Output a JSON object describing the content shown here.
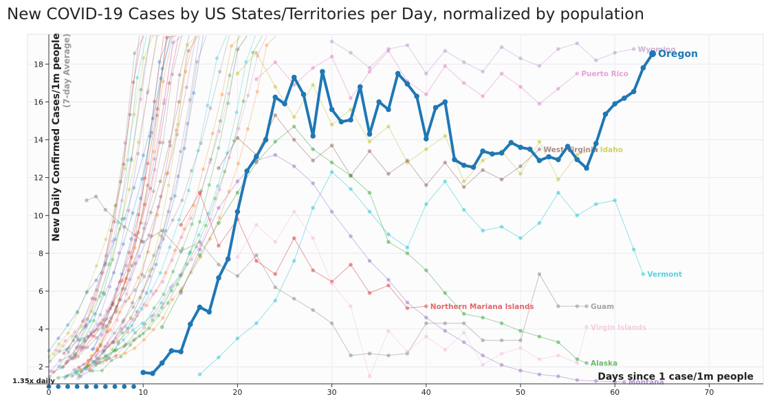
{
  "page": {
    "title": "New COVID-19 Cases by US States/Territories per Day, normalized by population"
  },
  "chart_data": {
    "type": "line",
    "title": "New COVID-19 Cases by US States/Territories per Day, normalized by population",
    "xlabel": "Days since 1 case/1m people",
    "ylabel": "New Daily Confirmed Cases/1m people",
    "ylabel_sub": "(7-day Average)",
    "xlim": [
      0,
      75
    ],
    "ylim": [
      1.1,
      19.5
    ],
    "x_ticks": [
      0,
      10,
      20,
      30,
      40,
      50,
      60,
      70
    ],
    "y_ticks": [
      2,
      4,
      6,
      8,
      10,
      12,
      14,
      16,
      18
    ],
    "grid": true,
    "trend_label": "1.35x daily",
    "highlight": {
      "name": "Oregon",
      "color": "#1f77b4",
      "x": [
        10,
        11,
        12,
        13,
        14,
        15,
        16,
        17,
        18,
        19,
        20,
        21,
        22,
        23,
        24,
        25,
        26,
        27,
        28,
        29,
        30,
        31,
        32,
        33,
        34,
        35,
        36,
        37,
        38,
        39,
        40,
        41,
        42,
        43,
        44,
        45,
        46,
        47,
        48,
        49,
        50,
        51,
        52,
        53,
        54,
        55,
        56,
        57,
        58,
        59,
        60,
        61,
        62,
        63,
        64
      ],
      "y": [
        1.7,
        1.65,
        2.2,
        2.85,
        2.8,
        4.25,
        5.15,
        4.9,
        6.7,
        7.7,
        10.2,
        12.35,
        13.1,
        14.0,
        16.25,
        15.9,
        17.3,
        16.4,
        14.2,
        17.6,
        15.6,
        14.95,
        15.05,
        16.8,
        14.3,
        16.0,
        15.6,
        17.5,
        16.95,
        16.3,
        14.05,
        15.7,
        16.0,
        12.95,
        12.65,
        12.55,
        13.4,
        13.25,
        13.3,
        13.85,
        13.6,
        13.5,
        12.9,
        13.1,
        12.95,
        13.65,
        12.95,
        12.5,
        13.8,
        15.35,
        15.9,
        16.2,
        16.55,
        17.8,
        18.55
      ]
    },
    "series": [
      {
        "name": "Wyoming",
        "color": "#b98ec4",
        "x": [
          30,
          32,
          34,
          36,
          38,
          40,
          42,
          44,
          46,
          48,
          50,
          52,
          54,
          56,
          58,
          60,
          62
        ],
        "y": [
          19.2,
          18.6,
          17.8,
          18.8,
          19.0,
          17.5,
          18.7,
          18.1,
          17.6,
          18.9,
          18.3,
          17.9,
          18.8,
          19.1,
          18.2,
          18.6,
          18.8
        ]
      },
      {
        "name": "Puerto Rico",
        "color": "#e377c2",
        "x": [
          22,
          24,
          26,
          28,
          30,
          32,
          34,
          36,
          38,
          40,
          42,
          44,
          46,
          48,
          50,
          52,
          54,
          56
        ],
        "y": [
          17.2,
          18.1,
          16.9,
          17.8,
          18.4,
          16.2,
          17.6,
          18.7,
          17.1,
          16.4,
          17.9,
          17.0,
          16.3,
          17.5,
          16.8,
          15.9,
          16.7,
          17.5
        ]
      },
      {
        "name": "Idaho",
        "color": "#bcbd22",
        "x": [
          20,
          22,
          24,
          26,
          28,
          30,
          32,
          34,
          36,
          38,
          40,
          42,
          44,
          46,
          48,
          50,
          52,
          54,
          56,
          58
        ],
        "y": [
          17.5,
          18.6,
          16.8,
          15.2,
          16.9,
          14.8,
          15.6,
          13.9,
          14.7,
          12.8,
          13.5,
          14.2,
          11.8,
          12.9,
          13.4,
          12.2,
          13.9,
          11.9,
          13.2,
          13.5
        ]
      },
      {
        "name": "West Virginia",
        "color": "#8c564b",
        "x": [
          18,
          20,
          22,
          24,
          26,
          28,
          30,
          32,
          34,
          36,
          38,
          40,
          42,
          44,
          46,
          48,
          50,
          52
        ],
        "y": [
          12.5,
          14.1,
          13.2,
          15.3,
          14.0,
          12.9,
          13.7,
          12.1,
          13.4,
          12.2,
          12.9,
          11.6,
          12.8,
          11.5,
          12.4,
          11.9,
          12.6,
          13.5
        ]
      },
      {
        "name": "Vermont",
        "color": "#17becf",
        "x": [
          16,
          18,
          20,
          22,
          24,
          26,
          28,
          30,
          32,
          34,
          36,
          38,
          40,
          42,
          44,
          46,
          48,
          50,
          52,
          54,
          56,
          58,
          60,
          62,
          63
        ],
        "y": [
          1.6,
          2.5,
          3.5,
          4.3,
          5.5,
          7.6,
          10.4,
          12.3,
          11.4,
          10.2,
          9.0,
          8.3,
          10.6,
          11.8,
          10.3,
          9.2,
          9.4,
          8.8,
          9.6,
          11.2,
          10.0,
          10.6,
          10.8,
          8.2,
          6.9
        ]
      },
      {
        "name": "Northern Mariana Islands",
        "color": "#d62728",
        "x": [
          14,
          16,
          18,
          20,
          22,
          24,
          26,
          28,
          30,
          32,
          34,
          36,
          38,
          40
        ],
        "y": [
          9.5,
          11.2,
          8.4,
          9.8,
          7.6,
          6.9,
          8.8,
          7.1,
          6.5,
          7.4,
          5.9,
          6.3,
          5.1,
          5.2
        ]
      },
      {
        "name": "Guam",
        "color": "#7f7f7f",
        "x": [
          4,
          5,
          6,
          8,
          10,
          12,
          14,
          16,
          18,
          20,
          22,
          24,
          26,
          28,
          30,
          32,
          34,
          36,
          38,
          40,
          42,
          44,
          46,
          48,
          50,
          52,
          54,
          56,
          57
        ],
        "y": [
          10.8,
          11.0,
          10.3,
          9.4,
          8.6,
          9.2,
          8.1,
          8.6,
          7.4,
          6.8,
          7.9,
          6.2,
          5.6,
          5.0,
          4.3,
          2.6,
          2.7,
          2.6,
          2.7,
          4.3,
          4.3,
          4.3,
          3.4,
          3.4,
          3.4,
          6.9,
          5.2,
          5.2,
          5.2
        ]
      },
      {
        "name": "Virgin Islands",
        "color": "#f7b6d2",
        "x": [
          20,
          22,
          24,
          26,
          28,
          30,
          32,
          34,
          36,
          38,
          40,
          42,
          44,
          46,
          48,
          50,
          52,
          54,
          56,
          57
        ],
        "y": [
          7.8,
          9.5,
          8.6,
          10.2,
          8.8,
          6.4,
          5.2,
          1.5,
          3.9,
          2.8,
          3.6,
          2.9,
          3.8,
          2.1,
          2.7,
          3.0,
          2.4,
          2.6,
          2.2,
          4.1
        ]
      },
      {
        "name": "Alaska",
        "color": "#2ca02c",
        "x": [
          12,
          14,
          16,
          18,
          20,
          22,
          24,
          26,
          28,
          30,
          32,
          34,
          36,
          38,
          40,
          42,
          44,
          46,
          48,
          50,
          52,
          54,
          56,
          57
        ],
        "y": [
          4.1,
          6.0,
          7.9,
          9.6,
          11.2,
          12.8,
          13.9,
          14.7,
          13.5,
          12.8,
          12.1,
          11.2,
          8.6,
          8.0,
          7.1,
          5.9,
          4.8,
          4.6,
          4.3,
          3.9,
          3.6,
          3.3,
          2.4,
          2.2
        ]
      },
      {
        "name": "Montana",
        "color": "#9467bd",
        "x": [
          14,
          16,
          18,
          20,
          22,
          24,
          26,
          28,
          30,
          32,
          34,
          36,
          38,
          40,
          42,
          44,
          46,
          48,
          50,
          52,
          54,
          56,
          58,
          60,
          61
        ],
        "y": [
          5.9,
          8.2,
          10.4,
          11.8,
          12.9,
          13.2,
          12.6,
          11.7,
          10.2,
          8.9,
          7.6,
          6.6,
          5.4,
          4.6,
          3.9,
          3.3,
          2.6,
          2.1,
          1.8,
          1.6,
          1.5,
          1.3,
          1.25,
          1.2,
          1.2
        ]
      }
    ],
    "label_positions_note": ""
  }
}
